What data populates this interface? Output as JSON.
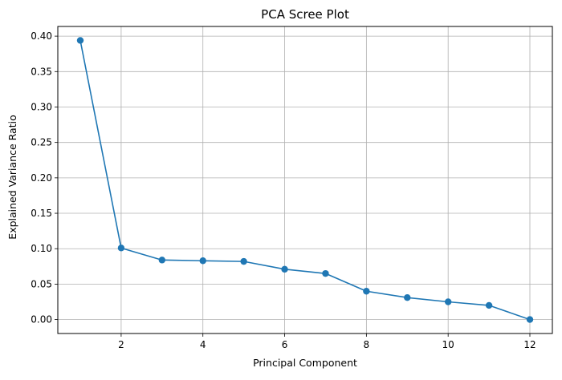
{
  "chart_data": {
    "type": "line",
    "title": "PCA Scree Plot",
    "xlabel": "Principal Component",
    "ylabel": "Explained Variance Ratio",
    "xlim": [
      0.45,
      12.55
    ],
    "ylim": [
      -0.0197,
      0.4137
    ],
    "x_ticks": [
      2,
      4,
      6,
      8,
      10,
      12
    ],
    "y_ticks": [
      0.0,
      0.05,
      0.1,
      0.15,
      0.2,
      0.25,
      0.3,
      0.35,
      0.4
    ],
    "x_tick_labels": [
      "2",
      "4",
      "6",
      "8",
      "10",
      "12"
    ],
    "y_tick_labels": [
      "0.00",
      "0.05",
      "0.10",
      "0.15",
      "0.20",
      "0.25",
      "0.30",
      "0.35",
      "0.40"
    ],
    "grid": true,
    "marker": "circle",
    "series": [
      {
        "color": "#1f77b4",
        "x": [
          1,
          2,
          3,
          4,
          5,
          6,
          7,
          8,
          9,
          10,
          11,
          12
        ],
        "values": [
          0.394,
          0.101,
          0.084,
          0.083,
          0.082,
          0.071,
          0.065,
          0.04,
          0.031,
          0.025,
          0.02,
          0.0
        ]
      }
    ]
  }
}
